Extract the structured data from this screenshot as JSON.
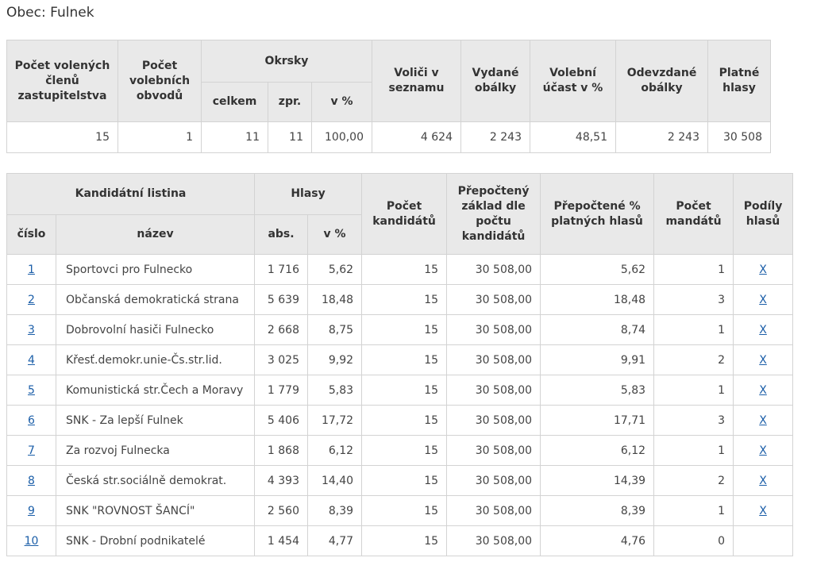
{
  "header": {
    "title": "Obec: Fulnek"
  },
  "summary": {
    "columns_before": [
      "Počet volených členů zastupitelstva",
      "Počet volebních obvodů"
    ],
    "group": {
      "label": "Okrsky",
      "sub": [
        "celkem",
        "zpr.",
        "v %"
      ]
    },
    "columns_after": [
      "Voliči v seznamu",
      "Vydané obálky",
      "Volební účast v %",
      "Odevzdané obálky",
      "Platné hlasy"
    ],
    "values": [
      "15",
      "1",
      "11",
      "11",
      "100,00",
      "4 624",
      "2 243",
      "48,51",
      "2 243",
      "30 508"
    ]
  },
  "results": {
    "groups": [
      {
        "label": "Kandidátní listina",
        "sub": [
          "číslo",
          "název"
        ]
      },
      {
        "label": "Hlasy",
        "sub": [
          "abs.",
          "v %"
        ]
      }
    ],
    "columns_after": [
      "Počet kandidátů",
      "Přepočtený základ dle počtu kandidátů",
      "Přepočtené % platných hlasů",
      "Počet mandátů",
      "Podíly hlasů"
    ],
    "rows": [
      [
        "1",
        "Sportovci pro Fulnecko",
        "1 716",
        "5,62",
        "15",
        "30 508,00",
        "5,62",
        "1",
        "X"
      ],
      [
        "2",
        "Občanská demokratická strana",
        "5 639",
        "18,48",
        "15",
        "30 508,00",
        "18,48",
        "3",
        "X"
      ],
      [
        "3",
        "Dobrovolní hasiči Fulnecko",
        "2 668",
        "8,75",
        "15",
        "30 508,00",
        "8,74",
        "1",
        "X"
      ],
      [
        "4",
        "Křesť.demokr.unie-Čs.str.lid.",
        "3 025",
        "9,92",
        "15",
        "30 508,00",
        "9,91",
        "2",
        "X"
      ],
      [
        "5",
        "Komunistická str.Čech a Moravy",
        "1 779",
        "5,83",
        "15",
        "30 508,00",
        "5,83",
        "1",
        "X"
      ],
      [
        "6",
        "SNK - Za lepší Fulnek",
        "5 406",
        "17,72",
        "15",
        "30 508,00",
        "17,71",
        "3",
        "X"
      ],
      [
        "7",
        "Za rozvoj Fulnecka",
        "1 868",
        "6,12",
        "15",
        "30 508,00",
        "6,12",
        "1",
        "X"
      ],
      [
        "8",
        "Česká str.sociálně demokrat.",
        "4 393",
        "14,40",
        "15",
        "30 508,00",
        "14,39",
        "2",
        "X"
      ],
      [
        "9",
        "SNK \"ROVNOST ŠANCÍ\"",
        "2 560",
        "8,39",
        "15",
        "30 508,00",
        "8,39",
        "1",
        "X"
      ],
      [
        "10",
        "SNK - Drobní podnikatelé",
        "1 454",
        "4,77",
        "15",
        "30 508,00",
        "4,76",
        "0"
      ]
    ]
  }
}
